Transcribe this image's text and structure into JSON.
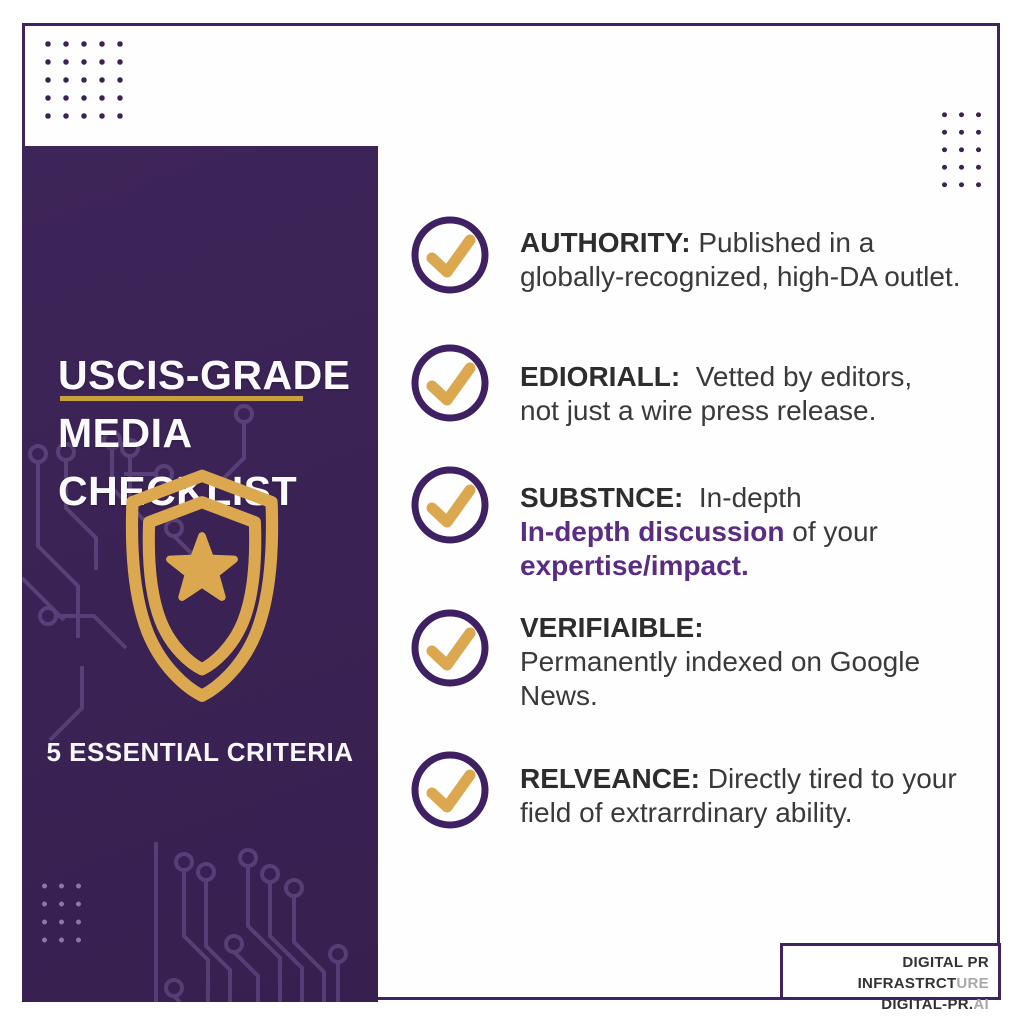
{
  "header": {
    "title_lines": [
      "USCIS-GRADE",
      "MEDIA",
      "CHECKLIST"
    ],
    "subtitle": "5 ESSENTIAL CRITERIA"
  },
  "checklist": {
    "items": [
      {
        "lines": [
          [
            {
              "t": "AUTHORITY:",
              "s": "label"
            },
            {
              "t": " Published in a",
              "s": "normal"
            }
          ],
          [
            {
              "t": "globally-recognized, high-DA outlet.",
              "s": "normal"
            }
          ]
        ]
      },
      {
        "lines": [
          [
            {
              "t": "EDIORIALL:",
              "s": "label"
            },
            {
              "t": "  Vetted by editors,",
              "s": "normal"
            }
          ],
          [
            {
              "t": "not just a wire press release.",
              "s": "normal"
            }
          ]
        ]
      },
      {
        "lines": [
          [
            {
              "t": "SUBSTNCE:",
              "s": "label"
            },
            {
              "t": "  In-depth",
              "s": "normal"
            }
          ],
          [
            {
              "t": "In-depth discussion",
              "s": "purple"
            },
            {
              "t": " of your",
              "s": "normal"
            }
          ],
          [
            {
              "t": "expertise/impact.",
              "s": "purple"
            }
          ]
        ]
      },
      {
        "lines": [
          [
            {
              "t": "VERIFIAIBLE:",
              "s": "label"
            }
          ],
          [
            {
              "t": "Permanently indexed on Google",
              "s": "normal"
            }
          ],
          [
            {
              "t": "News.",
              "s": "normal"
            }
          ]
        ]
      },
      {
        "lines": [
          [
            {
              "t": "RELVEANCE:",
              "s": "label"
            },
            {
              "t": " Directly tired to your",
              "s": "normal"
            }
          ],
          [
            {
              "t": "field of extrarrdinary ability.",
              "s": "normal"
            }
          ]
        ]
      }
    ]
  },
  "badge": {
    "line1_main": "DIGITAL PR INFRASTRCT",
    "line1_fade": "URE",
    "line2_main": "DIGITAL-PR.",
    "line2_fade": "AI"
  },
  "icons": {
    "shield": "shield-star-icon",
    "check": "checkmark-icon"
  },
  "colors": {
    "sidebar_purple": "#3B2355",
    "frame_border": "#41235F",
    "gold": "#DCA84F",
    "gold_divider": "#C8A13D",
    "check_ring": "#3F2163",
    "body_text": "#3A3A3A",
    "label_text": "#2D2D2D",
    "accent_purple_text": "#5B2C83",
    "circuit_line": "#8268A8",
    "dot_dark": "#3B2353",
    "dot_light": "#8D77A8",
    "badge_fade": "#A9A9A9"
  }
}
